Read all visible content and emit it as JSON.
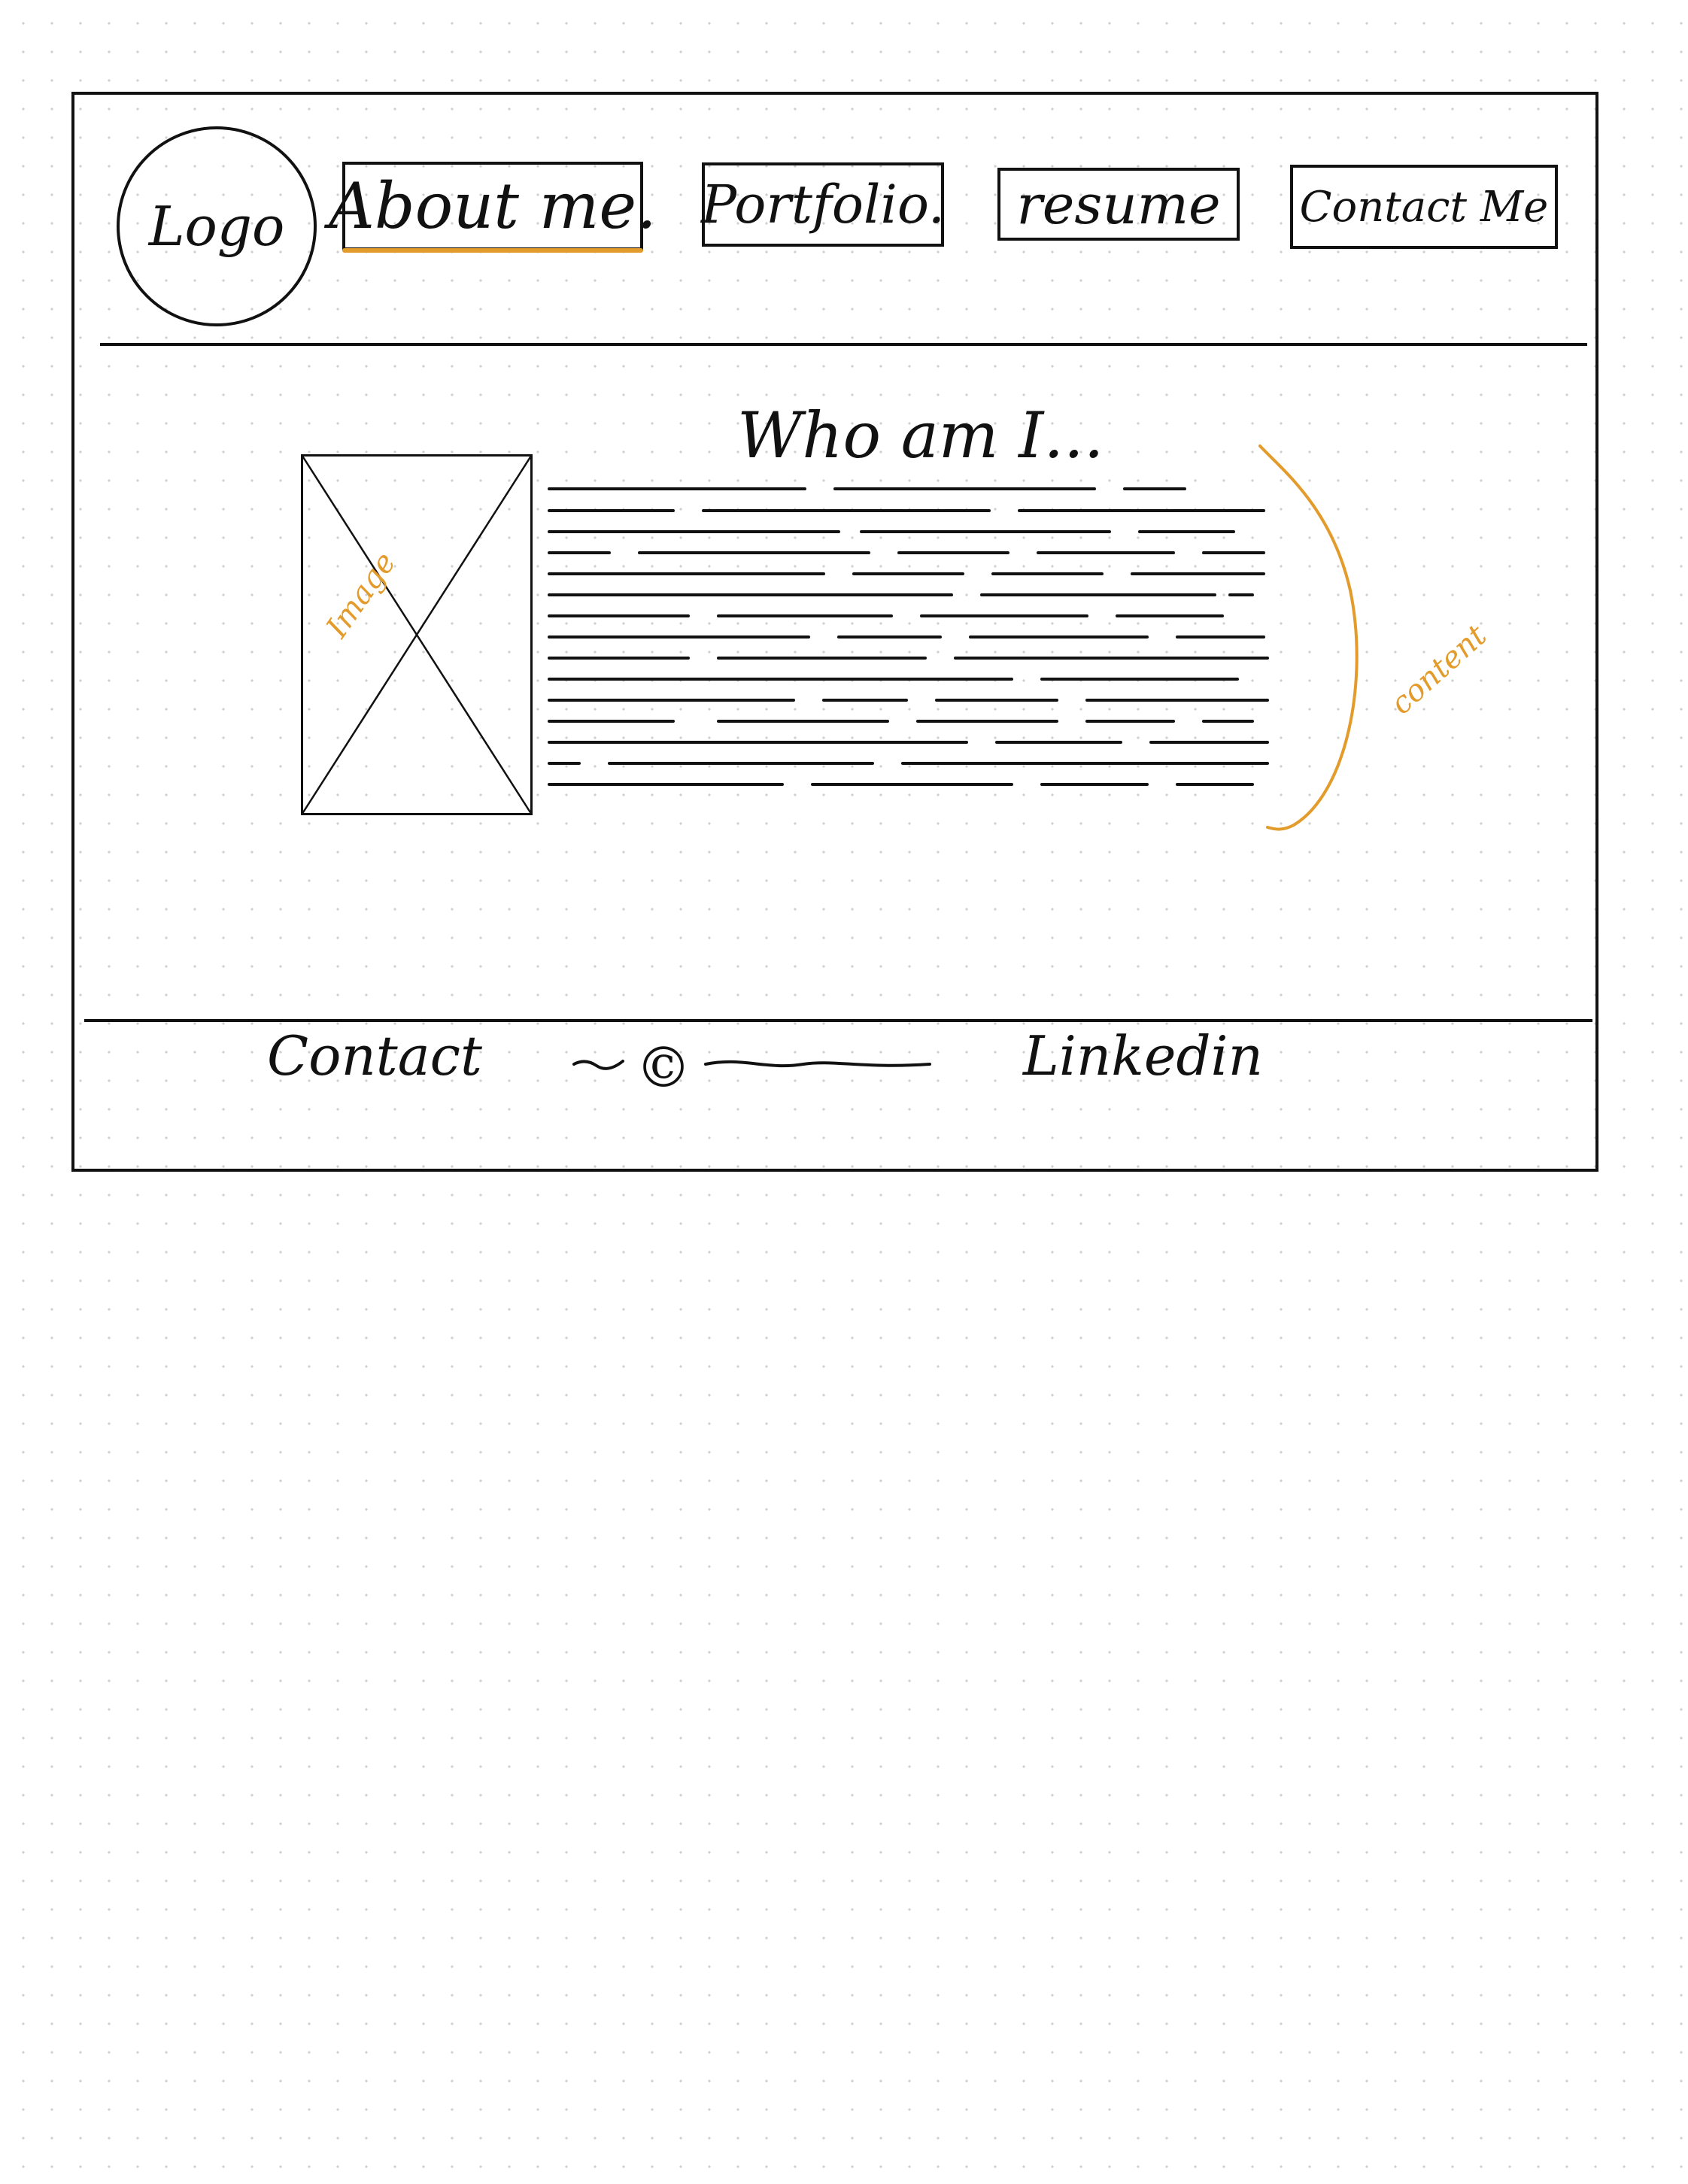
{
  "logo": {
    "label": "Logo"
  },
  "nav": {
    "about": "About me.",
    "portfolio": "Portfolio.",
    "resume": "resume",
    "contact": "Contact Me"
  },
  "main": {
    "heading": "Who am I...",
    "image_annotation": "Image",
    "content_annotation": "content"
  },
  "footer": {
    "contact": "Contact",
    "copyright": "©",
    "linkedin": "Linkedin"
  },
  "colors": {
    "ink": "#111111",
    "annotation": "#e39b2b"
  }
}
